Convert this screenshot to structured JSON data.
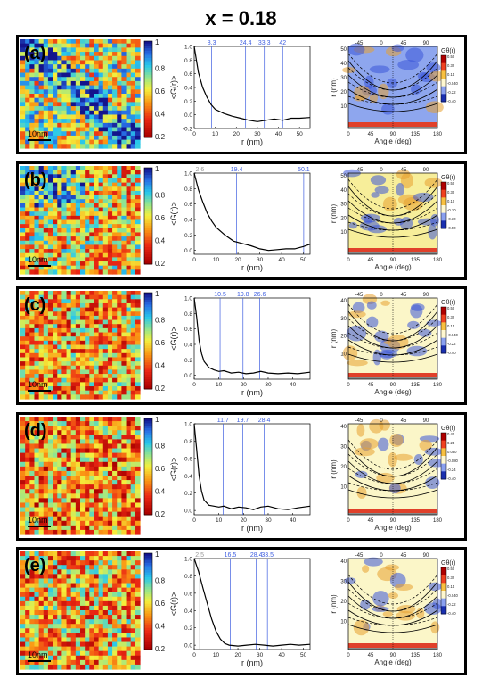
{
  "title": "x = 0.18",
  "colorbar_ticks": [
    "1",
    "0.8",
    "0.6",
    "0.4",
    "0.2"
  ],
  "scale_bar_label": "10nm",
  "line_ylabel": "<G(r)>",
  "line_xlabel": "r (nm)",
  "polar_ylabel": "r (nm)",
  "polar_xlabel": "Angle (deg)",
  "polar_cb_title": "Gθ(r)",
  "colors": {
    "map_low": "#c00000",
    "map_high": "#1a3fb0",
    "marker_line": "#3f5fe0"
  },
  "chart_data": [
    {
      "type": "line",
      "panel": "(a)",
      "markers_r": [
        "8.3",
        "24.4",
        "33.3",
        "42"
      ],
      "x_ticks": [
        "0",
        "10",
        "20",
        "30",
        "40",
        "50"
      ],
      "y_ticks": [
        "1.0",
        "0.8",
        "0.6",
        "0.4",
        "0.2",
        "0.0",
        "-0.2"
      ],
      "ylim": [
        -0.2,
        1.0
      ],
      "xlim": [
        0,
        55
      ],
      "x": [
        0,
        2,
        4,
        6,
        8,
        10,
        14,
        18,
        22,
        26,
        30,
        34,
        38,
        42,
        46,
        50,
        55
      ],
      "y": [
        1.0,
        0.62,
        0.4,
        0.26,
        0.15,
        0.08,
        0.02,
        -0.02,
        -0.05,
        -0.08,
        -0.1,
        -0.08,
        -0.06,
        -0.08,
        -0.05,
        -0.05,
        -0.04
      ],
      "polar": {
        "top_ticks": [
          "-45",
          "0",
          "45",
          "90"
        ],
        "x_ticks": [
          "0",
          "45",
          "90",
          "135",
          "180"
        ],
        "y_ticks": [
          "50",
          "40",
          "30",
          "20",
          "10"
        ],
        "cb_ticks": [
          "0.50",
          "0.32",
          "0.14",
          "-0.040",
          "-0.22",
          "-0.40"
        ],
        "palette": "blue"
      }
    },
    {
      "type": "line",
      "panel": "(b)",
      "markers_r": [
        "2.6",
        "19.4",
        "50.1"
      ],
      "x_ticks": [
        "0",
        "10",
        "20",
        "30",
        "40",
        "50"
      ],
      "y_ticks": [
        "1.0",
        "0.8",
        "0.6",
        "0.4",
        "0.2",
        "0.0"
      ],
      "ylim": [
        -0.05,
        1.0
      ],
      "xlim": [
        0,
        53
      ],
      "x": [
        0,
        2,
        4,
        6,
        8,
        10,
        14,
        18,
        22,
        26,
        30,
        34,
        38,
        42,
        46,
        50,
        53
      ],
      "y": [
        1.0,
        0.78,
        0.62,
        0.48,
        0.38,
        0.3,
        0.2,
        0.12,
        0.09,
        0.06,
        0.02,
        0.0,
        0.01,
        0.02,
        0.02,
        0.05,
        0.08
      ],
      "polar": {
        "top_ticks": [
          "-45",
          "0",
          "45",
          "90"
        ],
        "x_ticks": [
          "0",
          "45",
          "90",
          "135",
          "180"
        ],
        "y_ticks": [
          "50",
          "40",
          "30",
          "20",
          "10"
        ],
        "cb_ticks": [
          "0.50",
          "0.30",
          "0.10",
          "-0.10",
          "-0.30",
          "-0.50"
        ],
        "palette": "warm"
      }
    },
    {
      "type": "line",
      "panel": "(c)",
      "markers_r": [
        "10.5",
        "19.8",
        "26.6"
      ],
      "x_ticks": [
        "0",
        "10",
        "20",
        "30",
        "40"
      ],
      "y_ticks": [
        "1.0",
        "0.8",
        "0.6",
        "0.4",
        "0.2",
        "0.0"
      ],
      "ylim": [
        -0.05,
        1.0
      ],
      "xlim": [
        0,
        47
      ],
      "x": [
        0,
        1,
        2,
        3,
        4,
        6,
        8,
        10,
        12,
        15,
        18,
        21,
        24,
        27,
        30,
        34,
        38,
        42,
        47
      ],
      "y": [
        1.0,
        0.75,
        0.45,
        0.28,
        0.18,
        0.1,
        0.07,
        0.05,
        0.06,
        0.03,
        0.04,
        0.02,
        0.03,
        0.05,
        0.03,
        0.02,
        0.03,
        0.02,
        0.04
      ],
      "polar": {
        "top_ticks": [
          "-45",
          "0",
          "45",
          "90"
        ],
        "x_ticks": [
          "0",
          "45",
          "90",
          "135",
          "180"
        ],
        "y_ticks": [
          "40",
          "30",
          "20",
          "10"
        ],
        "cb_ticks": [
          "0.50",
          "0.32",
          "0.14",
          "-0.040",
          "-0.22",
          "-0.40"
        ],
        "palette": "yellow"
      }
    },
    {
      "type": "line",
      "panel": "(d)",
      "markers_r": [
        "11.7",
        "19.7",
        "28.4"
      ],
      "x_ticks": [
        "0",
        "10",
        "20",
        "30",
        "40"
      ],
      "y_ticks": [
        "1.0",
        "0.8",
        "0.6",
        "0.4",
        "0.2",
        "0.0"
      ],
      "ylim": [
        -0.05,
        1.0
      ],
      "xlim": [
        0,
        47
      ],
      "x": [
        0,
        1,
        2,
        3,
        4,
        6,
        8,
        10,
        12,
        15,
        18,
        21,
        24,
        27,
        30,
        34,
        38,
        42,
        47
      ],
      "y": [
        1.0,
        0.7,
        0.4,
        0.22,
        0.12,
        0.06,
        0.05,
        0.04,
        0.05,
        0.02,
        0.04,
        0.03,
        0.01,
        0.04,
        0.05,
        0.02,
        0.01,
        0.03,
        0.05
      ],
      "polar": {
        "top_ticks": [
          "-45",
          "0",
          "45",
          "90"
        ],
        "x_ticks": [
          "0",
          "45",
          "90",
          "135",
          "180"
        ],
        "y_ticks": [
          "40",
          "30",
          "20",
          "10"
        ],
        "cb_ticks": [
          "0.40",
          "0.24",
          "0.080",
          "-0.080",
          "-0.24",
          "-0.40"
        ],
        "palette": "yellow"
      }
    },
    {
      "type": "line",
      "panel": "(e)",
      "markers_r": [
        "2.5",
        "16.5",
        "28.4",
        "33.5"
      ],
      "x_ticks": [
        "0",
        "10",
        "20",
        "30",
        "40",
        "50"
      ],
      "y_ticks": [
        "1.0",
        "0.8",
        "0.6",
        "0.4",
        "0.2",
        "0.0"
      ],
      "ylim": [
        -0.05,
        1.0
      ],
      "xlim": [
        0,
        53
      ],
      "x": [
        0,
        2,
        4,
        6,
        8,
        10,
        12,
        14,
        16,
        20,
        24,
        28,
        32,
        36,
        40,
        44,
        48,
        53
      ],
      "y": [
        1.0,
        0.85,
        0.66,
        0.48,
        0.3,
        0.16,
        0.07,
        0.02,
        0.0,
        -0.01,
        0.0,
        0.01,
        0.0,
        -0.01,
        0.0,
        0.01,
        0.0,
        0.01
      ],
      "polar": {
        "top_ticks": [
          "-45",
          "0",
          "45",
          "90"
        ],
        "x_ticks": [
          "0",
          "45",
          "90",
          "135",
          "180"
        ],
        "y_ticks": [
          "40",
          "30",
          "20",
          "10"
        ],
        "cb_ticks": [
          "0.50",
          "0.32",
          "0.14",
          "-0.040",
          "-0.22",
          "-0.40"
        ],
        "palette": "yellow"
      }
    }
  ]
}
